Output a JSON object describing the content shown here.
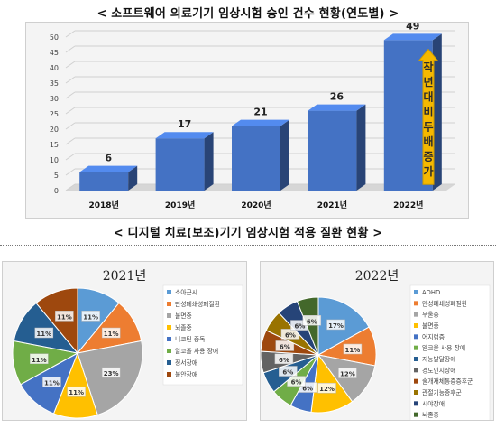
{
  "titles": {
    "top": "< 소프트웨어 의료기기 임상시험 승인 건수 현황(연도별) >",
    "bottom": "< 디지털 치료(보조)기기 임상시험 적용 질환 현황 >"
  },
  "chart_data": [
    {
      "type": "bar",
      "categories": [
        "2018년",
        "2019년",
        "2020년",
        "2021년",
        "2022년"
      ],
      "values": [
        6,
        17,
        21,
        26,
        49
      ],
      "ylim": [
        0,
        50
      ],
      "yticks": [
        0,
        5,
        10,
        15,
        20,
        25,
        30,
        35,
        40,
        45,
        50
      ],
      "grid": true,
      "annotation": "작년대비두배증가",
      "colors": {
        "bar": "#4472c4",
        "arrow": "#f5b800"
      }
    },
    {
      "type": "pie",
      "title": "2021년",
      "labels": [
        "소아근시",
        "만성폐쇄성폐질환",
        "불면증",
        "뇌졸중",
        "니코틴 중독",
        "알코올 사용 장애",
        "정서장애",
        "불안장애"
      ],
      "values": [
        11,
        11,
        23,
        11,
        11,
        11,
        11,
        11
      ],
      "slice_labels": [
        "11%",
        "11%",
        "23%",
        "11%",
        "11%",
        "11%",
        "11%",
        "11%"
      ],
      "colors": [
        "#5b9bd5",
        "#ed7d31",
        "#a5a5a5",
        "#ffc000",
        "#4472c4",
        "#70ad47",
        "#255e91",
        "#9e480e"
      ],
      "legend": "right"
    },
    {
      "type": "pie",
      "title": "2022년",
      "labels": [
        "ADHD",
        "만성폐쇄성폐질환",
        "우울증",
        "불면증",
        "어지럼증",
        "알코올 사용 장애",
        "지능발달장애",
        "경도인지장애",
        "술개재체통증증후군",
        "관절기능증후군",
        "시야장애",
        "뇌졸중"
      ],
      "values": [
        17,
        11,
        12,
        12,
        6,
        6,
        6,
        6,
        6,
        6,
        6,
        6
      ],
      "slice_labels": [
        "17%",
        "11%",
        "12%",
        "12%",
        "6%",
        "6%",
        "6%",
        "6%",
        "6%",
        "6%",
        "6%",
        "6%"
      ],
      "colors": [
        "#5b9bd5",
        "#ed7d31",
        "#a5a5a5",
        "#ffc000",
        "#4472c4",
        "#70ad47",
        "#255e91",
        "#636363",
        "#9e480e",
        "#997300",
        "#264478",
        "#43682b"
      ],
      "legend": "right"
    }
  ]
}
